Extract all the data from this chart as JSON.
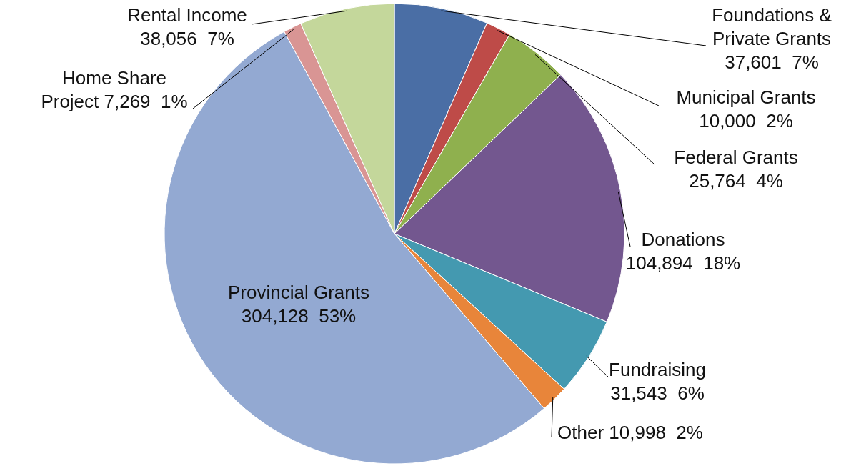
{
  "chart_data": {
    "type": "pie",
    "categories": [
      "Foundations & Private Grants",
      "Municipal Grants",
      "Federal Grants",
      "Donations",
      "Fundraising",
      "Other",
      "Provincial Grants",
      "Home Share Project",
      "Rental Income"
    ],
    "values": [
      37601,
      10000,
      25764,
      104894,
      31543,
      10998,
      304128,
      7269,
      38056
    ],
    "value_labels": [
      "37,601  7%",
      "10,000  2%",
      "25,764  4%",
      "104,894  18%",
      "31,543  6%",
      "10,998  2%",
      "304,128  53%",
      "7,269  1%",
      "38,056  7%"
    ],
    "colors": [
      "#4a6ea5",
      "#be4b48",
      "#8fb04e",
      "#73578f",
      "#4499b0",
      "#e8853a",
      "#93a9d2",
      "#d99594",
      "#c4d79b"
    ]
  }
}
